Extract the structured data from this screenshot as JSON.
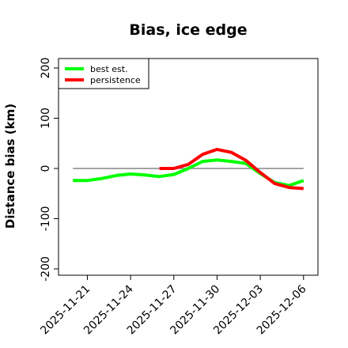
{
  "chart_data": {
    "type": "line",
    "title": "Bias, ice edge",
    "xlabel": "",
    "ylabel": "Distance bias (km)",
    "ylim": [
      -200,
      200
    ],
    "yticks": [
      -200,
      -100,
      0,
      100,
      200
    ],
    "xlim": [
      "2025-11-19",
      "2025-12-07"
    ],
    "xticks": [
      "2025-11-21",
      "2025-11-24",
      "2025-11-27",
      "2025-11-30",
      "2025-12-03",
      "2025-12-06"
    ],
    "reference_line": 0,
    "legend_position": "top-left",
    "series": [
      {
        "name": "best est.",
        "color": "#00ff00",
        "points": [
          [
            "2025-11-20",
            -24
          ],
          [
            "2025-11-21",
            -24
          ],
          [
            "2025-11-22",
            -20
          ],
          [
            "2025-11-23",
            -14
          ],
          [
            "2025-11-24",
            -11
          ],
          [
            "2025-11-25",
            -13
          ],
          [
            "2025-11-26",
            -16
          ],
          [
            "2025-11-27",
            -12
          ],
          [
            "2025-11-28",
            0
          ],
          [
            "2025-11-29",
            14
          ],
          [
            "2025-11-30",
            17
          ],
          [
            "2025-12-01",
            14
          ],
          [
            "2025-12-02",
            10
          ],
          [
            "2025-12-03",
            -10
          ],
          [
            "2025-12-04",
            -28
          ],
          [
            "2025-12-05",
            -34
          ],
          [
            "2025-12-06",
            -24
          ]
        ]
      },
      {
        "name": "persistence",
        "color": "#ff0000",
        "points": [
          [
            "2025-11-26",
            0
          ],
          [
            "2025-11-27",
            0
          ],
          [
            "2025-11-28",
            8
          ],
          [
            "2025-11-29",
            28
          ],
          [
            "2025-11-30",
            38
          ],
          [
            "2025-12-01",
            32
          ],
          [
            "2025-12-02",
            16
          ],
          [
            "2025-12-03",
            -8
          ],
          [
            "2025-12-04",
            -30
          ],
          [
            "2025-12-05",
            -38
          ],
          [
            "2025-12-06",
            -40
          ]
        ]
      }
    ]
  }
}
